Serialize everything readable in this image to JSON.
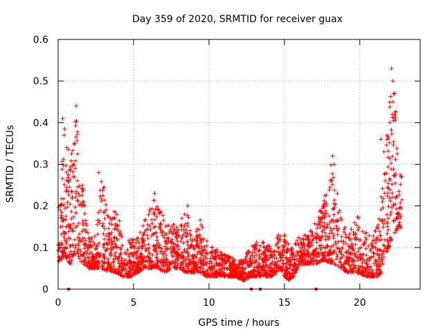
{
  "chart_data": {
    "type": "scatter",
    "title": "Day 359 of 2020, SRMTID for receiver guax",
    "xlabel": "GPS time / hours",
    "ylabel": "SRMTID / TECUs",
    "xlim": [
      0,
      24
    ],
    "ylim": [
      0,
      0.6
    ],
    "xticks": [
      "0",
      "5",
      "10",
      "15",
      "20"
    ],
    "xtick_values": [
      0,
      5,
      10,
      15,
      20
    ],
    "yticks": [
      "0",
      "0.1",
      "0.2",
      "0.3",
      "0.4",
      "0.5",
      "0.6"
    ],
    "ytick_values": [
      0,
      0.1,
      0.2,
      0.3,
      0.4,
      0.5,
      0.6
    ],
    "grid": true,
    "marker": "+",
    "color": "#ff0000",
    "x_range": [
      0,
      22.8
    ],
    "envelope": [
      [
        0.0,
        0.06,
        0.19
      ],
      [
        0.4,
        0.08,
        0.42
      ],
      [
        0.8,
        0.06,
        0.3
      ],
      [
        1.2,
        0.09,
        0.44
      ],
      [
        1.6,
        0.06,
        0.26
      ],
      [
        2.0,
        0.05,
        0.13
      ],
      [
        2.5,
        0.05,
        0.14
      ],
      [
        2.9,
        0.05,
        0.28
      ],
      [
        3.4,
        0.04,
        0.17
      ],
      [
        3.9,
        0.04,
        0.2
      ],
      [
        4.3,
        0.03,
        0.11
      ],
      [
        4.8,
        0.03,
        0.12
      ],
      [
        5.3,
        0.04,
        0.13
      ],
      [
        5.7,
        0.05,
        0.17
      ],
      [
        6.2,
        0.05,
        0.22
      ],
      [
        6.6,
        0.05,
        0.22
      ],
      [
        7.1,
        0.04,
        0.16
      ],
      [
        7.5,
        0.05,
        0.16
      ],
      [
        8.0,
        0.05,
        0.15
      ],
      [
        8.5,
        0.04,
        0.2
      ],
      [
        8.9,
        0.04,
        0.13
      ],
      [
        9.4,
        0.04,
        0.17
      ],
      [
        9.8,
        0.03,
        0.12
      ],
      [
        10.3,
        0.03,
        0.1
      ],
      [
        10.8,
        0.03,
        0.09
      ],
      [
        11.3,
        0.03,
        0.08
      ],
      [
        11.8,
        0.03,
        0.07
      ],
      [
        12.3,
        0.02,
        0.08
      ],
      [
        12.8,
        0.03,
        0.1
      ],
      [
        13.3,
        0.03,
        0.12
      ],
      [
        13.8,
        0.03,
        0.12
      ],
      [
        14.3,
        0.03,
        0.09
      ],
      [
        14.7,
        0.05,
        0.15
      ],
      [
        15.2,
        0.02,
        0.12
      ],
      [
        15.6,
        0.03,
        0.1
      ],
      [
        16.0,
        0.06,
        0.13
      ],
      [
        16.6,
        0.06,
        0.13
      ],
      [
        17.1,
        0.06,
        0.17
      ],
      [
        17.6,
        0.07,
        0.21
      ],
      [
        18.2,
        0.06,
        0.32
      ],
      [
        18.7,
        0.05,
        0.18
      ],
      [
        19.2,
        0.04,
        0.13
      ],
      [
        19.8,
        0.04,
        0.18
      ],
      [
        20.3,
        0.03,
        0.15
      ],
      [
        20.8,
        0.03,
        0.13
      ],
      [
        21.3,
        0.03,
        0.18
      ],
      [
        21.7,
        0.08,
        0.34
      ],
      [
        22.2,
        0.13,
        0.53
      ],
      [
        22.6,
        0.15,
        0.3
      ],
      [
        22.8,
        0.14,
        0.27
      ]
    ],
    "spikes": [
      [
        0.3,
        0.41
      ],
      [
        0.4,
        0.37
      ],
      [
        1.2,
        0.44
      ],
      [
        1.1,
        0.35
      ],
      [
        2.7,
        0.28
      ],
      [
        6.4,
        0.23
      ],
      [
        8.6,
        0.2
      ],
      [
        18.2,
        0.32
      ],
      [
        18.3,
        0.3
      ],
      [
        21.4,
        0.36
      ],
      [
        22.1,
        0.53
      ],
      [
        22.2,
        0.5
      ],
      [
        22.3,
        0.47
      ],
      [
        22.2,
        0.45
      ],
      [
        22.0,
        0.4
      ],
      [
        22.3,
        0.42
      ],
      [
        21.6,
        0.33
      ],
      [
        14.6,
        0.13
      ]
    ],
    "baseline_marks_x": [
      0.7,
      12.8,
      13.4,
      17.1
    ],
    "points_per_hour": 120
  }
}
